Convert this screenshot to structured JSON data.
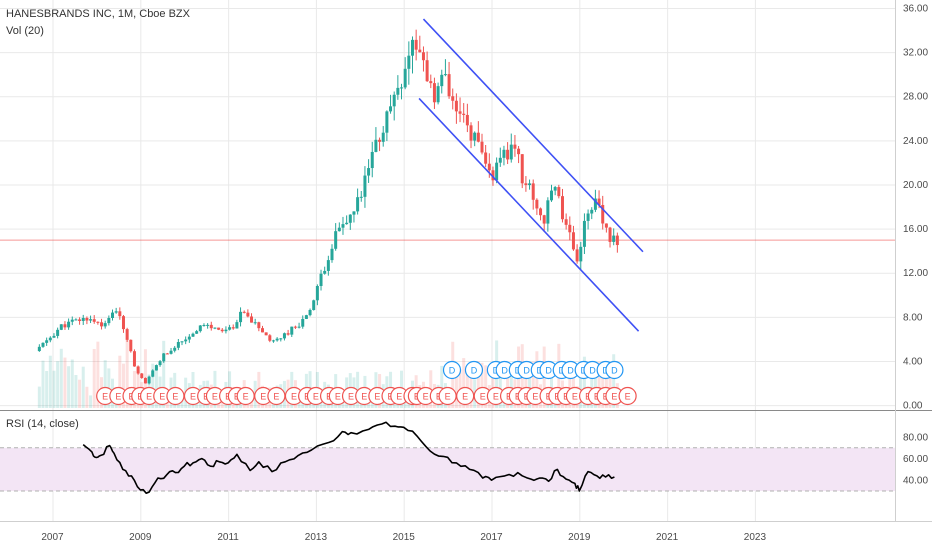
{
  "header": {
    "symbol_line": "HANESBRANDS INC, 1M, Cboe BZX",
    "volume_label": "Vol (20)"
  },
  "rsi_panel": {
    "label": "RSI (14, close)"
  },
  "colors": {
    "up": "#26a69a",
    "down": "#ef5350",
    "channel": "#3f51f5",
    "price_line": "#ef5350",
    "rsi_line": "#000000",
    "rsi_band": "#f3e5f5",
    "grid": "#e9e9e9",
    "earnings_marker": "#ef5350",
    "dividend_marker": "#2196f3"
  },
  "chart_data": [
    {
      "type": "candlestick",
      "title": "HANESBRANDS INC, 1M, Cboe BZX",
      "interval": "1M",
      "price_axis": {
        "ticks": [
          "36.00",
          "32.00",
          "28.00",
          "24.00",
          "20.00",
          "16.00",
          "12.00",
          "8.00",
          "4.00",
          "0.00"
        ],
        "ylim": [
          0,
          36
        ]
      },
      "time_axis": {
        "ticks": [
          "2007",
          "2009",
          "2011",
          "2013",
          "2015",
          "2017",
          "2019",
          "2021",
          "2023"
        ],
        "xlim": [
          2006.1,
          2024.5
        ]
      },
      "grid": true,
      "current_price_line": 15.0,
      "price_path": [
        [
          2006.7,
          4.9
        ],
        [
          2007.0,
          6.0
        ],
        [
          2007.3,
          7.2
        ],
        [
          2007.6,
          7.6
        ],
        [
          2007.9,
          7.9
        ],
        [
          2008.3,
          7.2
        ],
        [
          2008.5,
          8.9
        ],
        [
          2008.8,
          6.0
        ],
        [
          2009.0,
          2.9
        ],
        [
          2009.2,
          1.8
        ],
        [
          2009.5,
          4.0
        ],
        [
          2009.8,
          5.2
        ],
        [
          2010.2,
          6.3
        ],
        [
          2010.5,
          7.3
        ],
        [
          2010.8,
          6.9
        ],
        [
          2011.2,
          6.8
        ],
        [
          2011.4,
          8.4
        ],
        [
          2011.8,
          7.0
        ],
        [
          2012.1,
          5.6
        ],
        [
          2012.5,
          6.8
        ],
        [
          2012.8,
          7.7
        ],
        [
          2013.0,
          9.0
        ],
        [
          2013.3,
          12.8
        ],
        [
          2013.5,
          15.2
        ],
        [
          2013.8,
          16.5
        ],
        [
          2014.1,
          18.7
        ],
        [
          2014.4,
          23.0
        ],
        [
          2014.7,
          26.2
        ],
        [
          2014.9,
          28.5
        ],
        [
          2015.2,
          31.8
        ],
        [
          2015.3,
          33.3
        ],
        [
          2015.5,
          31.2
        ],
        [
          2015.8,
          28.2
        ],
        [
          2016.0,
          29.6
        ],
        [
          2016.2,
          26.8
        ],
        [
          2016.5,
          25.4
        ],
        [
          2016.7,
          24.2
        ],
        [
          2016.9,
          21.7
        ],
        [
          2017.1,
          20.8
        ],
        [
          2017.4,
          22.5
        ],
        [
          2017.6,
          23.8
        ],
        [
          2017.8,
          20.5
        ],
        [
          2018.0,
          19.2
        ],
        [
          2018.3,
          16.5
        ],
        [
          2018.5,
          20.6
        ],
        [
          2018.7,
          17.4
        ],
        [
          2018.9,
          15.6
        ],
        [
          2019.0,
          12.6
        ],
        [
          2019.2,
          16.4
        ],
        [
          2019.4,
          18.7
        ],
        [
          2019.6,
          16.9
        ],
        [
          2019.8,
          14.3
        ],
        [
          2019.9,
          15.1
        ]
      ],
      "channel": [
        {
          "from": [
            2015.45,
            35.0
          ],
          "to": [
            2020.45,
            13.9
          ]
        },
        {
          "from": [
            2015.35,
            27.8
          ],
          "to": [
            2020.35,
            6.7
          ]
        }
      ],
      "events": {
        "earnings": {
          "label": "E",
          "years": [
            2008.2,
            2008.5,
            2008.8,
            2009.0,
            2009.2,
            2009.5,
            2009.8,
            2010.2,
            2010.5,
            2010.7,
            2011.0,
            2011.2,
            2011.4,
            2011.8,
            2012.1,
            2012.5,
            2012.8,
            2013.0,
            2013.3,
            2013.5,
            2013.8,
            2014.1,
            2014.4,
            2014.7,
            2014.9,
            2015.2,
            2015.3,
            2015.5,
            2015.8,
            2016.0,
            2016.4,
            2016.8,
            2017.1,
            2017.4,
            2017.6,
            2017.8,
            2018.0,
            2018.3,
            2018.5,
            2018.7,
            2018.9,
            2019.2,
            2019.4,
            2019.6,
            2019.8,
            2020.1
          ]
        },
        "dividends": {
          "label": "D",
          "years": [
            2016.1,
            2016.6,
            2017.1,
            2017.3,
            2017.6,
            2017.8,
            2018.1,
            2018.3,
            2018.6,
            2018.8,
            2019.1,
            2019.3,
            2019.6,
            2019.8
          ]
        }
      },
      "volume": {
        "label": "Vol (20)"
      }
    },
    {
      "type": "line",
      "title": "RSI (14, close)",
      "yaxis_ticks": [
        "80.00",
        "60.00",
        "40.00"
      ],
      "band": [
        30,
        70
      ],
      "xlim": [
        2006.1,
        2024.5
      ],
      "series": [
        {
          "values": [
            [
              2007.7,
              73
            ],
            [
              2007.9,
              66
            ],
            [
              2008.0,
              61
            ],
            [
              2008.1,
              63
            ],
            [
              2008.3,
              72
            ],
            [
              2008.4,
              65
            ],
            [
              2008.6,
              50
            ],
            [
              2008.8,
              44
            ],
            [
              2009.0,
              31
            ],
            [
              2009.2,
              29
            ],
            [
              2009.4,
              42
            ],
            [
              2009.6,
              45
            ],
            [
              2009.8,
              47
            ],
            [
              2010.0,
              53
            ],
            [
              2010.2,
              56
            ],
            [
              2010.4,
              60
            ],
            [
              2010.6,
              53
            ],
            [
              2010.8,
              57
            ],
            [
              2011.0,
              56
            ],
            [
              2011.2,
              64
            ],
            [
              2011.5,
              49
            ],
            [
              2011.7,
              57
            ],
            [
              2012.0,
              48
            ],
            [
              2012.3,
              57
            ],
            [
              2012.6,
              63
            ],
            [
              2012.9,
              68
            ],
            [
              2013.3,
              75
            ],
            [
              2013.6,
              85
            ],
            [
              2013.8,
              84
            ],
            [
              2014.2,
              87
            ],
            [
              2014.5,
              92
            ],
            [
              2014.8,
              90
            ],
            [
              2015.0,
              89
            ],
            [
              2015.3,
              81
            ],
            [
              2015.6,
              67
            ],
            [
              2015.9,
              62
            ],
            [
              2016.2,
              56
            ],
            [
              2016.5,
              50
            ],
            [
              2016.8,
              42
            ],
            [
              2017.0,
              40
            ],
            [
              2017.3,
              44
            ],
            [
              2017.6,
              47
            ],
            [
              2017.9,
              41
            ],
            [
              2018.1,
              42
            ],
            [
              2018.3,
              39
            ],
            [
              2018.5,
              50
            ],
            [
              2018.7,
              41
            ],
            [
              2018.9,
              37
            ],
            [
              2019.0,
              30
            ],
            [
              2019.2,
              48
            ],
            [
              2019.4,
              44
            ],
            [
              2019.6,
              43
            ],
            [
              2019.8,
              43
            ]
          ]
        }
      ]
    }
  ]
}
